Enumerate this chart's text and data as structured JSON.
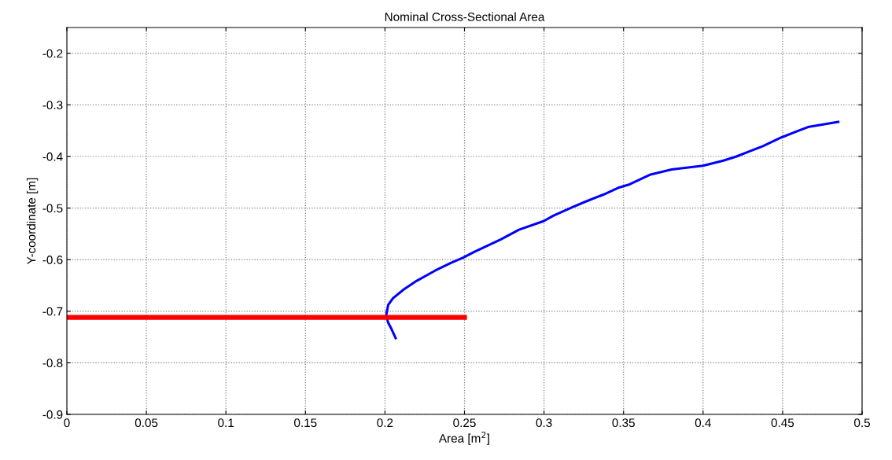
{
  "chart_data": {
    "type": "line",
    "title": "Nominal Cross-Sectional Area",
    "xlabel": "Area [m$^{2}$]",
    "ylabel": "Y-coordinate [m]",
    "xlim": [
      0,
      0.5
    ],
    "ylim": [
      -0.9,
      -0.15
    ],
    "xticks": [
      0,
      0.05,
      0.1,
      0.15,
      0.2,
      0.25,
      0.3,
      0.35,
      0.4,
      0.45,
      0.5
    ],
    "yticks": [
      -0.9,
      -0.8,
      -0.7,
      -0.6,
      -0.5,
      -0.4,
      -0.3,
      -0.2
    ],
    "grid": true,
    "line_style": "solid",
    "marker": "none",
    "series": [
      {
        "color": "#0000ff",
        "x": [
          0.2067,
          0.2042,
          0.202,
          0.2008,
          0.202,
          0.205,
          0.2117,
          0.22,
          0.2317,
          0.2417,
          0.2492,
          0.2561,
          0.2727,
          0.2843,
          0.3,
          0.3058,
          0.318,
          0.3257,
          0.3373,
          0.3464,
          0.3538,
          0.367,
          0.3803,
          0.4,
          0.4128,
          0.421,
          0.4293,
          0.4376,
          0.4493,
          0.4576,
          0.466,
          0.485
        ],
        "values": [
          -0.752,
          -0.735,
          -0.722,
          -0.708,
          -0.688,
          -0.675,
          -0.658,
          -0.641,
          -0.621,
          -0.606,
          -0.596,
          -0.585,
          -0.561,
          -0.542,
          -0.525,
          -0.515,
          -0.498,
          -0.488,
          -0.474,
          -0.461,
          -0.454,
          -0.435,
          -0.425,
          -0.418,
          -0.408,
          -0.4,
          -0.39,
          -0.38,
          -0.363,
          -0.353,
          -0.343,
          -0.333
        ]
      },
      {
        "color": "#ff0000",
        "x": [
          0,
          0.25
        ],
        "values": [
          -0.712,
          -0.712
        ]
      }
    ]
  }
}
